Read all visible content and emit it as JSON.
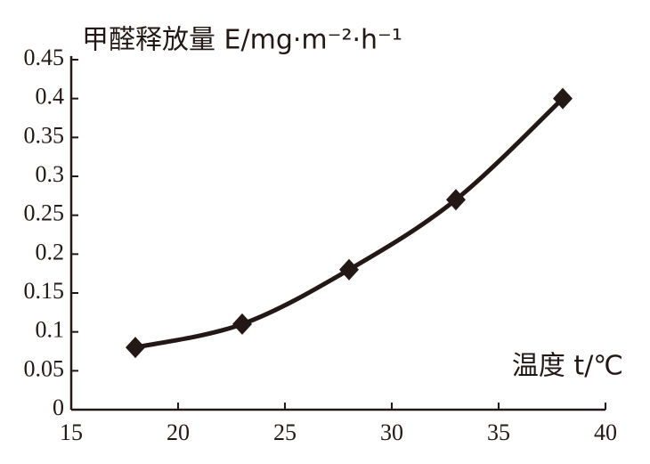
{
  "chart_data": {
    "type": "line",
    "y_label": "甲醛释放量 E/mg·m⁻²·h⁻¹",
    "x_label": "温度 t/℃",
    "x": [
      18,
      23,
      28,
      33,
      38
    ],
    "series": [
      {
        "color": "#231815",
        "values": [
          0.08,
          0.11,
          0.18,
          0.27,
          0.4
        ]
      }
    ],
    "xlim": [
      15,
      40
    ],
    "xticks": [
      15,
      20,
      25,
      30,
      35,
      40
    ],
    "ylim": [
      0,
      0.45
    ],
    "yticks": [
      0,
      0.05,
      0.1,
      0.15,
      0.2,
      0.25,
      0.3,
      0.35,
      0.4,
      0.45
    ],
    "grid": false
  }
}
